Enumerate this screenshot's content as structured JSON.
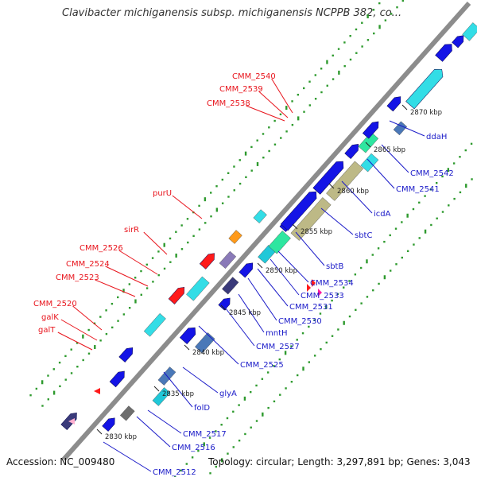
{
  "title": "Clavibacter michiganensis subsp. michiganensis NCPPB 382, co...",
  "footer": {
    "accession": "Accession: NC_009480",
    "topology": "Topology: circular; Length: 3,297,891 bp; Genes: 3,043"
  },
  "colors": {
    "backbone": "#8c8c8c",
    "cds": "#1414e6",
    "rna": "#ff1a1a",
    "label_red": "#e8141c",
    "label_blue": "#1a1ac8",
    "gc_dot": "#2e9a2e",
    "cyan": "#33dde6",
    "khaki": "#bdb986",
    "sea": "#2ee6a0"
  },
  "tick_labels": [
    "2830 kbp",
    "2835 kbp",
    "2840 kbp",
    "2845 kbp",
    "2850 kbp",
    "2855 kbp",
    "2860 kbp",
    "2865 kbp",
    "2870 kbp"
  ],
  "red_labels": [
    "CMM_2540",
    "CMM_2539",
    "CMM_2538",
    "purU",
    "sirR",
    "CMM_2526",
    "CMM_2524",
    "CMM_2523",
    "CMM_2520",
    "galK",
    "galT"
  ],
  "blue_labels": [
    "ddaH",
    "CMM_2542",
    "CMM_2541",
    "icdA",
    "sbtC",
    "sbtB",
    "CMM_2534",
    "CMM_2533",
    "CMM_2531",
    "CMM_2530",
    "mntH",
    "CMM_2527",
    "CMM_2525",
    "glyA",
    "folD",
    "CMM_2517",
    "CMM_2516",
    "CMM_2512"
  ]
}
